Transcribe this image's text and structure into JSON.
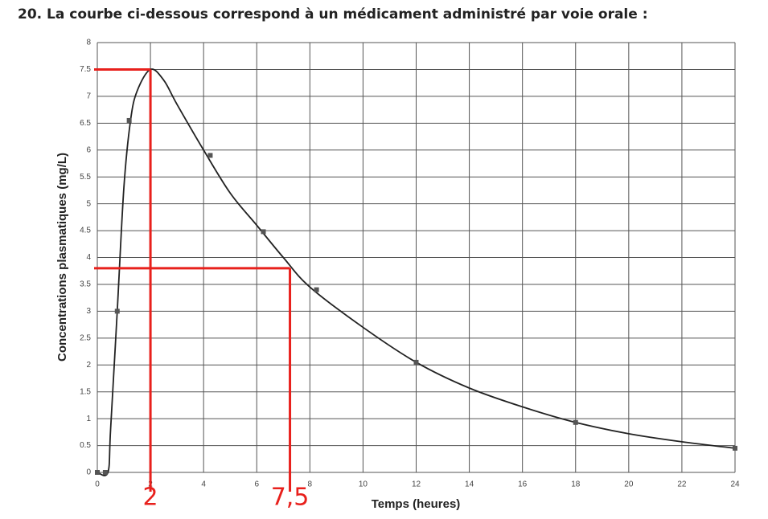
{
  "title": "20. La courbe ci-dessous correspond à un médicament administré par voie orale :",
  "chart_data": {
    "type": "line",
    "x_label": "Temps (heures)",
    "y_label": "Concentrations plasmatiques (mg/L)",
    "xlim": [
      0,
      24
    ],
    "xticks": [
      0,
      2,
      4,
      6,
      8,
      10,
      12,
      14,
      16,
      18,
      20,
      22,
      24
    ],
    "ylim": [
      0,
      8
    ],
    "yticks": [
      0,
      0.5,
      1,
      1.5,
      2,
      2.5,
      3,
      3.5,
      4,
      4.5,
      5,
      5.5,
      6,
      6.5,
      7,
      7.5,
      8
    ],
    "grid": true,
    "series": [
      {
        "color": "#222222",
        "marker": false,
        "x": [
          0,
          0.4,
          0.5,
          0.75,
          1,
          1.25,
          1.5,
          2,
          2.5,
          3,
          4,
          5,
          6,
          7,
          8,
          10,
          12,
          14,
          16,
          18,
          20,
          22,
          24
        ],
        "values": [
          0,
          0,
          0.8,
          3,
          5.3,
          6.55,
          7.1,
          7.5,
          7.3,
          6.85,
          6.0,
          5.2,
          4.6,
          4.0,
          3.45,
          2.7,
          2.05,
          1.57,
          1.22,
          0.93,
          0.72,
          0.57,
          0.45
        ]
      },
      {
        "color": "#555555",
        "marker": true,
        "x": [
          0,
          0.3,
          0.75,
          1.2,
          4.25,
          6.25,
          8.25,
          12,
          18,
          24
        ],
        "values": [
          0,
          0,
          3,
          6.55,
          5.9,
          4.48,
          3.4,
          2.05,
          0.93,
          0.45
        ]
      }
    ],
    "annotations": [
      {
        "x": 2,
        "y": 7.5,
        "label": "2",
        "color": "#e8201c"
      },
      {
        "x": 7.25,
        "y": 3.8,
        "label": "7,5",
        "color": "#e8201c"
      }
    ]
  }
}
